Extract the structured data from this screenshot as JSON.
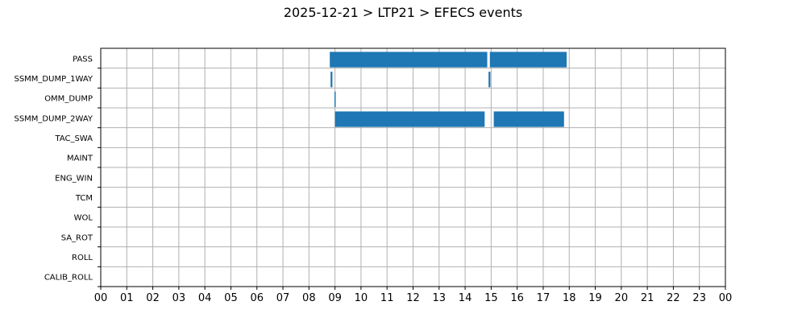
{
  "chart_data": {
    "type": "bar",
    "orientation": "horizontal-timeline",
    "title": "2025-12-21 > LTP21 > EFECS events",
    "xlabel": "",
    "ylabel": "",
    "xlim": [
      0,
      24
    ],
    "grid": true,
    "bar_color": "#1f77b4",
    "x_ticks": [
      "00",
      "01",
      "02",
      "03",
      "04",
      "05",
      "06",
      "07",
      "08",
      "09",
      "10",
      "11",
      "12",
      "13",
      "14",
      "15",
      "16",
      "17",
      "18",
      "19",
      "20",
      "21",
      "22",
      "23",
      "00"
    ],
    "categories": [
      "PASS",
      "SSMM_DUMP_1WAY",
      "OMM_DUMP",
      "SSMM_DUMP_2WAY",
      "TAC_SWA",
      "MAINT",
      "ENG_WIN",
      "TCM",
      "WOL",
      "SA_ROT",
      "ROLL",
      "CALIB_ROLL"
    ],
    "events": [
      {
        "category": "PASS",
        "start": 8.8,
        "end": 14.85
      },
      {
        "category": "PASS",
        "start": 14.95,
        "end": 17.9
      },
      {
        "category": "SSMM_DUMP_1WAY",
        "start": 8.83,
        "end": 8.9
      },
      {
        "category": "SSMM_DUMP_1WAY",
        "start": 14.9,
        "end": 14.97
      },
      {
        "category": "OMM_DUMP",
        "start": 8.98,
        "end": 9.02
      },
      {
        "category": "SSMM_DUMP_2WAY",
        "start": 9.0,
        "end": 14.75
      },
      {
        "category": "SSMM_DUMP_2WAY",
        "start": 15.1,
        "end": 17.8
      }
    ]
  }
}
